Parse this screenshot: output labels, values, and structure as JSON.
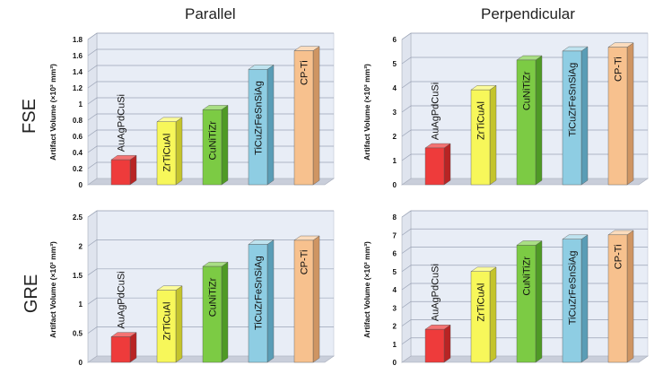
{
  "columns": [
    "Parallel",
    "Perpendicular"
  ],
  "rows": [
    "FSE",
    "GRE"
  ],
  "colors": {
    "AuAgPdCuSi": {
      "front": "#ee3b3b",
      "side": "#b82424",
      "top": "#f47373"
    },
    "ZrTiCuAl": {
      "front": "#f7f75a",
      "side": "#c4c42c",
      "top": "#fbfb9a"
    },
    "CuNiTiZr": {
      "front": "#7ccb44",
      "side": "#4f9a25",
      "top": "#a9de84"
    },
    "TiCuZrFeSnSiAg": {
      "front": "#8ecde3",
      "side": "#5a9db6",
      "top": "#bfe3ef"
    },
    "CP-Ti": {
      "front": "#f7c18e",
      "side": "#cf9563",
      "top": "#fbdcbd"
    },
    "wall": "#e8edf6",
    "grid": "#9aa3b5"
  },
  "chart_data": [
    {
      "type": "bar",
      "name": "FSE Parallel",
      "ylabel": "Artifact Volume (×10³ mm³)",
      "categories": [
        "AuAgPdCuSi",
        "ZrTiCuAl",
        "CuNiTiZr",
        "TiCuZrFeSnSiAg",
        "CP-Ti"
      ],
      "values": [
        0.31,
        0.78,
        0.93,
        1.43,
        1.66
      ],
      "ylim": [
        0,
        1.8
      ],
      "ticks": [
        "0",
        "0.2",
        "0.4",
        "0.6",
        "0.8",
        "1",
        "1.2",
        "1.4",
        "1.6",
        "1.8"
      ],
      "grid": true
    },
    {
      "type": "bar",
      "name": "FSE Perpendicular",
      "ylabel": "Artifact Volume (×10³ mm³)",
      "categories": [
        "AuAgPdCuSi",
        "ZrTiCuAl",
        "CuNiTiZr",
        "TiCuZrFeSnSiAg",
        "CP-Ti"
      ],
      "values": [
        1.52,
        3.92,
        5.15,
        5.52,
        5.68
      ],
      "ylim": [
        0,
        6
      ],
      "ticks": [
        "0",
        "1",
        "2",
        "3",
        "4",
        "5",
        "6"
      ],
      "grid": true
    },
    {
      "type": "bar",
      "name": "GRE Parallel",
      "ylabel": "Artifact Volume (×10³ mm³)",
      "categories": [
        "AuAgPdCuSi",
        "ZrTiCuAl",
        "CuNiTiZr",
        "TiCuZrFeSnSiAg",
        "CP-Ti"
      ],
      "values": [
        0.44,
        1.24,
        1.65,
        2.03,
        2.1
      ],
      "ylim": [
        0,
        2.5
      ],
      "ticks": [
        "0",
        "0.5",
        "1",
        "1.5",
        "2",
        "2.5"
      ],
      "grid": true
    },
    {
      "type": "bar",
      "name": "GRE Perpendicular",
      "ylabel": "Artifact Volume (×10³ mm³)",
      "categories": [
        "AuAgPdCuSi",
        "ZrTiCuAl",
        "CuNiTiZr",
        "TiCuZrFeSnSiAg",
        "CP-Ti"
      ],
      "values": [
        1.82,
        5.0,
        6.45,
        6.78,
        7.02
      ],
      "ylim": [
        0,
        8
      ],
      "ticks": [
        "0",
        "1",
        "2",
        "3",
        "4",
        "5",
        "6",
        "7",
        "8"
      ],
      "grid": true
    }
  ]
}
